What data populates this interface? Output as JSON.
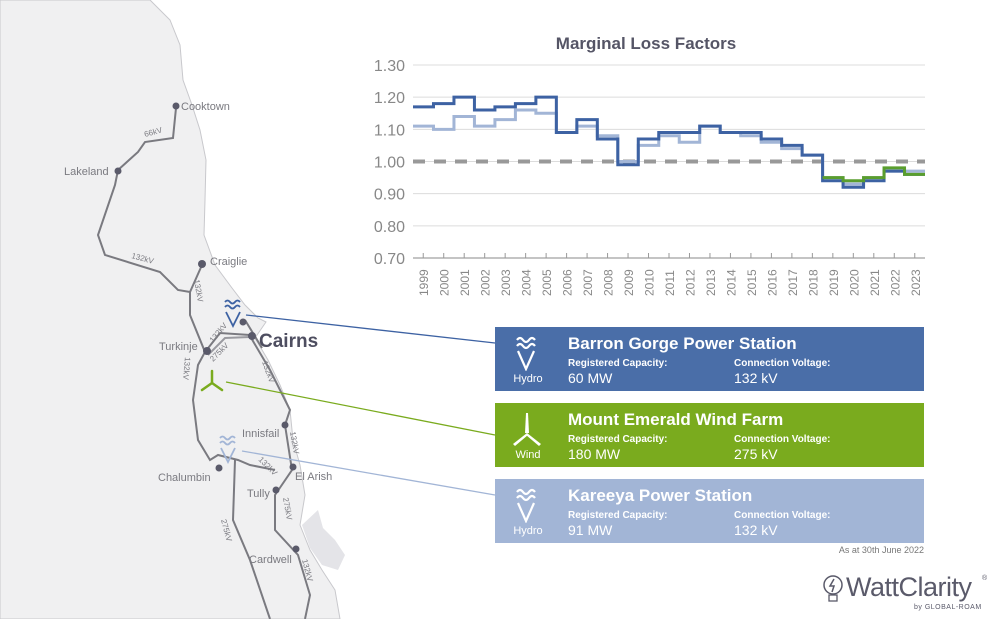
{
  "map": {
    "places": [
      "Cooktown",
      "Lakeland",
      "Craiglie",
      "Cairns",
      "Turkinje",
      "Innisfail",
      "Chalumbin",
      "El Arish",
      "Tully",
      "Cardwell"
    ],
    "line_labels": [
      "66kV",
      "132kV",
      "132kV",
      "132kV",
      "275kV",
      "132kV",
      "132kV",
      "132kV",
      "275kV",
      "275kV",
      "132kV",
      "132kV"
    ]
  },
  "stations": [
    {
      "name": "Barron Gorge Power Station",
      "type": "Hydro",
      "cap_label": "Registered Capacity:",
      "cap": "60 MW",
      "volt_label": "Connection Voltage:",
      "volt": "132 kV",
      "color": "#4a6ea8",
      "icon": "hydro-icon"
    },
    {
      "name": "Mount Emerald Wind Farm",
      "type": "Wind",
      "cap_label": "Registered Capacity:",
      "cap": "180 MW",
      "volt_label": "Connection Voltage:",
      "volt": "275 kV",
      "color": "#7aab1e",
      "icon": "wind-turbine-icon"
    },
    {
      "name": "Kareeya Power Station",
      "type": "Hydro",
      "cap_label": "Registered Capacity:",
      "cap": "91 MW",
      "volt_label": "Connection Voltage:",
      "volt": "132 kV",
      "color": "#a2b5d6",
      "icon": "hydro-icon"
    }
  ],
  "note": "As at 30th June 2022",
  "logo": {
    "name": "WattClarity",
    "by": "by GLOBAL-ROAM",
    "reg": "®"
  },
  "chart_data": {
    "type": "line",
    "title": "Marginal Loss Factors",
    "step": true,
    "ylim": [
      0.7,
      1.3
    ],
    "yticks": [
      "0.70",
      "0.80",
      "0.90",
      "1.00",
      "1.10",
      "1.20",
      "1.30"
    ],
    "reference_line": 1.0,
    "grid": true,
    "categories": [
      "1999",
      "2000",
      "2001",
      "2002",
      "2003",
      "2004",
      "2005",
      "2006",
      "2007",
      "2008",
      "2009",
      "2010",
      "2011",
      "2012",
      "2013",
      "2014",
      "2015",
      "2016",
      "2017",
      "2018",
      "2019",
      "2020",
      "2021",
      "2022",
      "2023"
    ],
    "series": [
      {
        "station": "Kareeya Power Station",
        "color": "#a2b5d6",
        "values": [
          1.11,
          1.1,
          1.14,
          1.11,
          1.13,
          1.16,
          1.15,
          1.09,
          1.11,
          1.08,
          1.0,
          1.05,
          1.08,
          1.06,
          1.11,
          1.09,
          1.08,
          1.06,
          1.04,
          1.02,
          0.95,
          0.93,
          0.95,
          0.97,
          0.97
        ]
      },
      {
        "station": "Barron Gorge Power Station",
        "color": "#3d62a3",
        "values": [
          1.17,
          1.18,
          1.2,
          1.16,
          1.17,
          1.18,
          1.2,
          1.09,
          1.13,
          1.07,
          0.99,
          1.07,
          1.09,
          1.09,
          1.11,
          1.09,
          1.09,
          1.07,
          1.05,
          1.02,
          0.94,
          0.92,
          0.94,
          0.97,
          0.96
        ]
      },
      {
        "station": "Mount Emerald Wind Farm",
        "color": "#5a9e2e",
        "values": [
          null,
          null,
          null,
          null,
          null,
          null,
          null,
          null,
          null,
          null,
          null,
          null,
          null,
          null,
          null,
          null,
          null,
          null,
          null,
          null,
          0.95,
          0.94,
          0.95,
          0.98,
          0.96
        ]
      }
    ]
  }
}
